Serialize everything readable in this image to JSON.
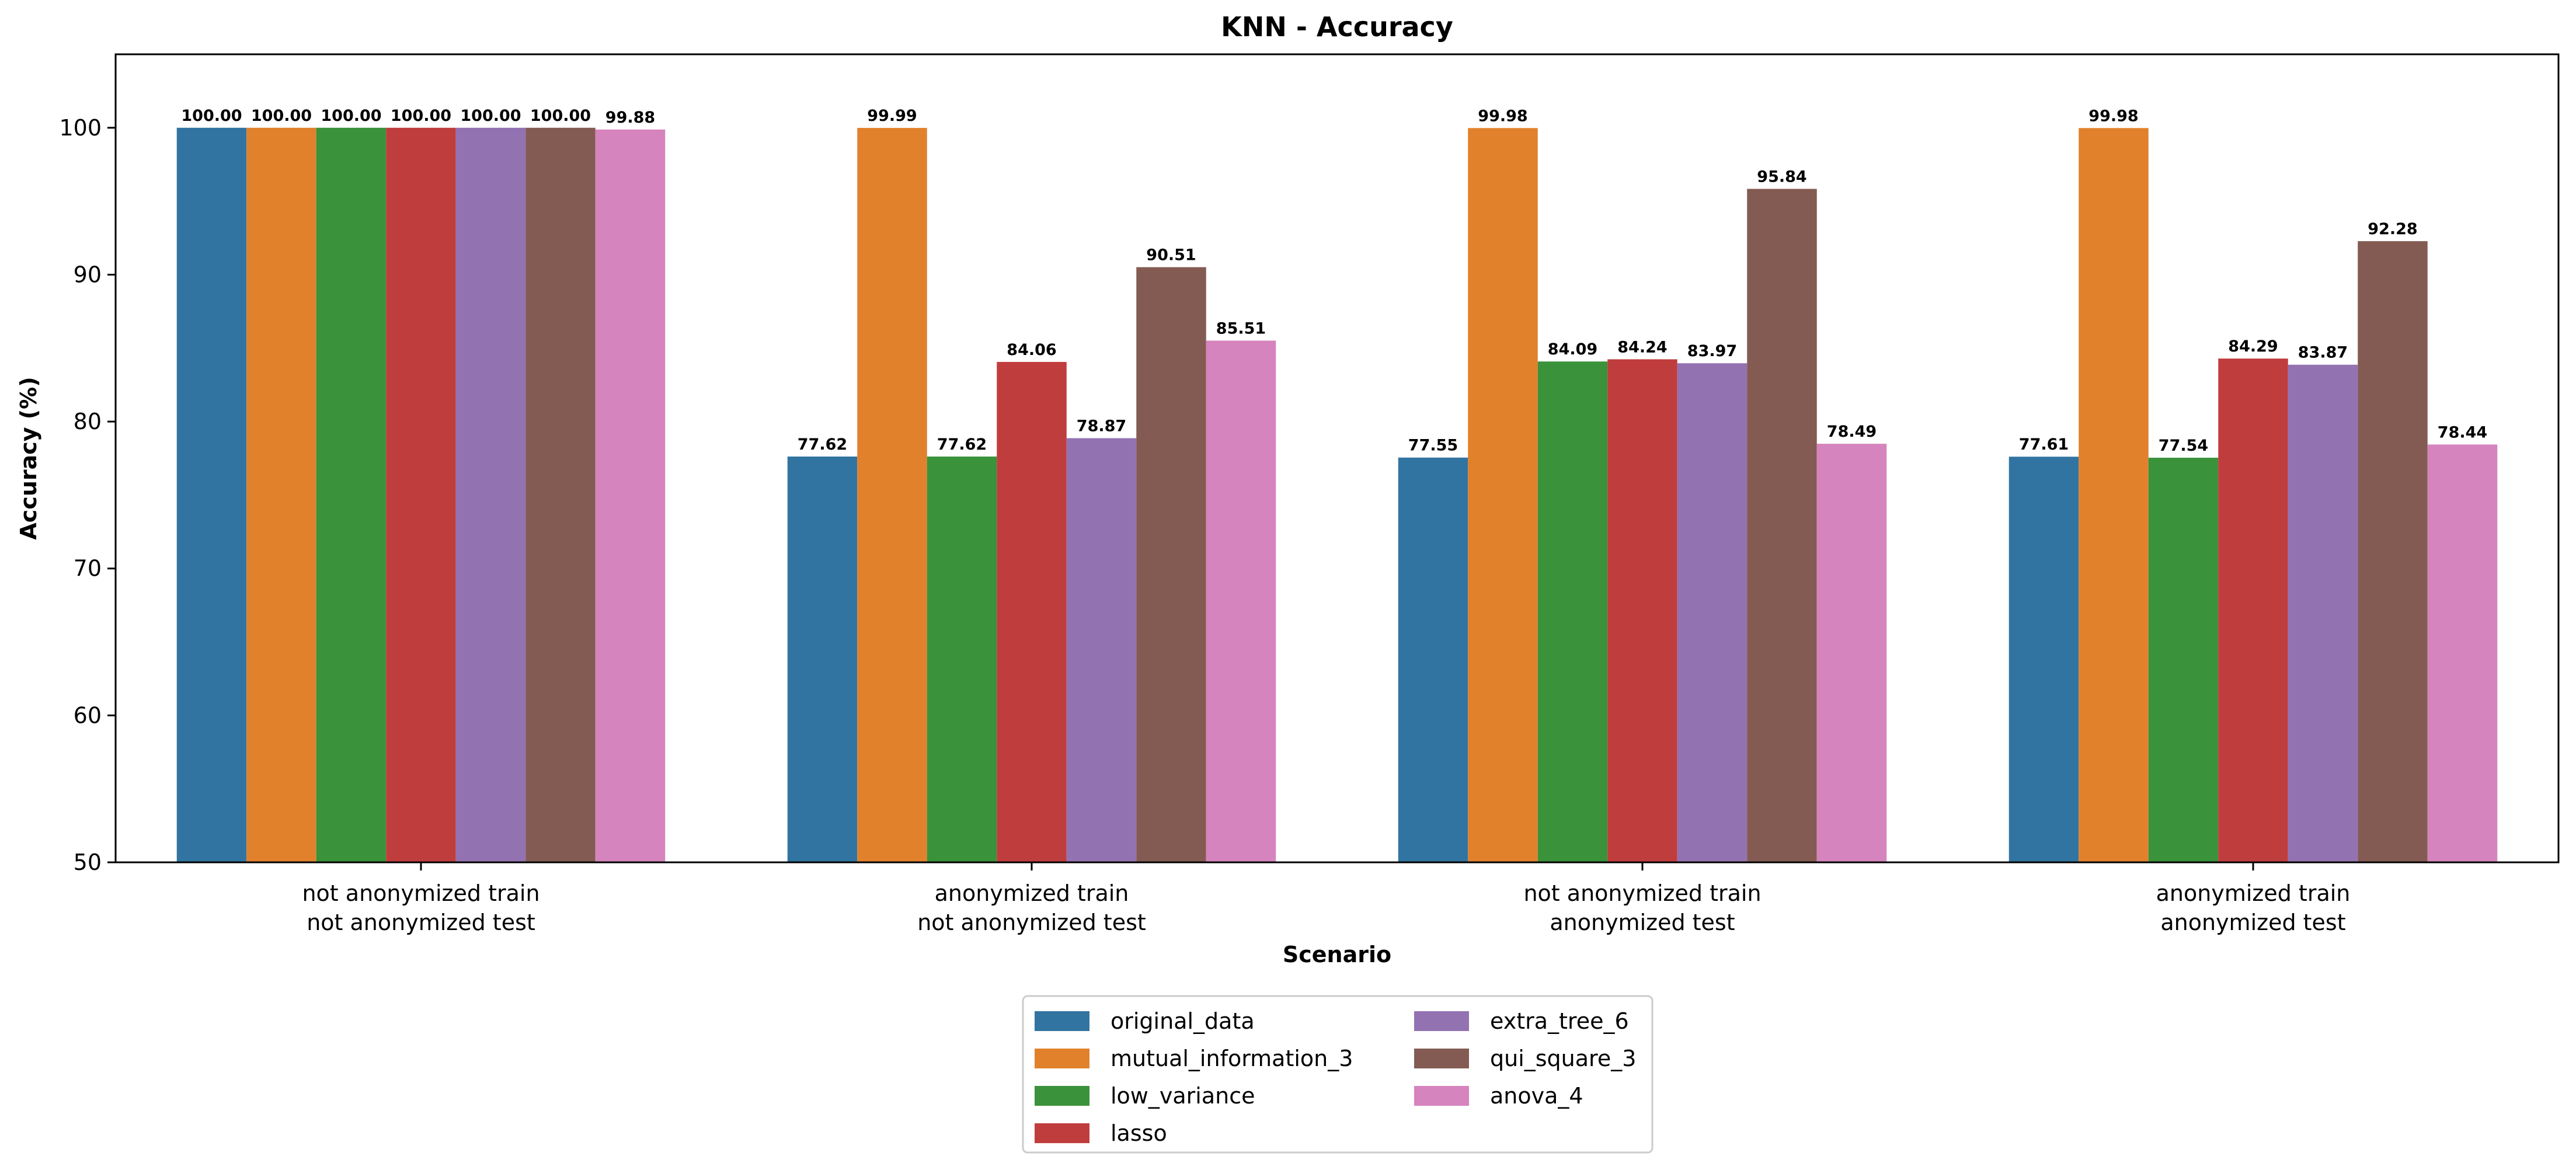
{
  "chart_data": {
    "type": "bar",
    "title": "KNN - Accuracy",
    "xlabel": "Scenario",
    "ylabel": "Accuracy (%)",
    "ylim": [
      50,
      105
    ],
    "yticks": [
      50,
      60,
      70,
      80,
      90,
      100
    ],
    "grid": false,
    "legend_position": "bottom-center",
    "categories": [
      [
        "not anonymized train",
        "not anonymized test"
      ],
      [
        "anonymized train",
        "not anonymized test"
      ],
      [
        "not anonymized train",
        "anonymized test"
      ],
      [
        "anonymized train",
        "anonymized test"
      ]
    ],
    "series": [
      {
        "name": "original_data",
        "color": "#3274a1",
        "values": [
          100.0,
          77.62,
          77.55,
          77.61
        ]
      },
      {
        "name": "mutual_information_3",
        "color": "#e1812c",
        "values": [
          100.0,
          99.99,
          99.98,
          99.98
        ]
      },
      {
        "name": "low_variance",
        "color": "#3a923a",
        "values": [
          100.0,
          77.62,
          84.09,
          77.54
        ]
      },
      {
        "name": "lasso",
        "color": "#c03d3e",
        "values": [
          100.0,
          84.06,
          84.24,
          84.29
        ]
      },
      {
        "name": "extra_tree_6",
        "color": "#9372b2",
        "values": [
          100.0,
          78.87,
          83.97,
          83.87
        ]
      },
      {
        "name": "qui_square_3",
        "color": "#845b53",
        "values": [
          100.0,
          90.51,
          95.84,
          92.28
        ]
      },
      {
        "name": "anova_4",
        "color": "#d684bd",
        "values": [
          99.88,
          85.51,
          78.49,
          78.44
        ]
      }
    ]
  }
}
